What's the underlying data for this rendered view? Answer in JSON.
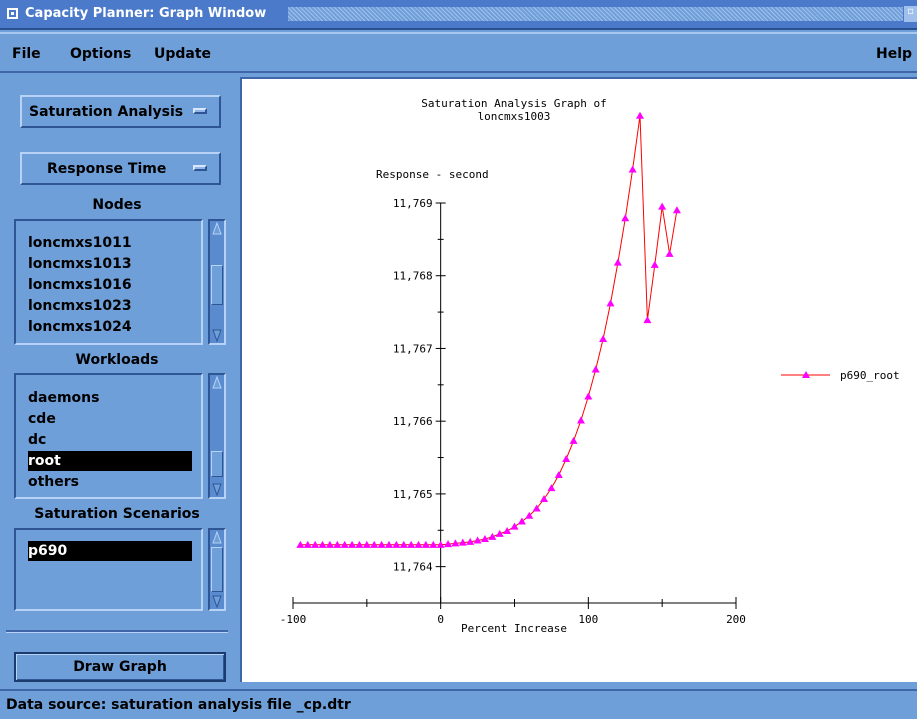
{
  "window": {
    "title": "Capacity Planner: Graph Window"
  },
  "menu": {
    "file": "File",
    "options": "Options",
    "update": "Update",
    "help": "Help"
  },
  "left_panel": {
    "analysis_option": "Saturation Analysis",
    "metric_option": "Response Time",
    "nodes_label": "Nodes",
    "nodes": [
      "loncmxs1011",
      "loncmxs1013",
      "loncmxs1016",
      "loncmxs1023",
      "loncmxs1024"
    ],
    "workloads_label": "Workloads",
    "workloads": [
      "daemons",
      "cde",
      "dc",
      "root",
      "others"
    ],
    "selected_workload": "root",
    "scenarios_label": "Saturation Scenarios",
    "scenarios": [
      "p690"
    ],
    "selected_scenario": "p690",
    "draw_button": "Draw Graph"
  },
  "status": {
    "text": "Data source: saturation analysis file _cp.dtr"
  },
  "colors": {
    "series_line": "#ff0000",
    "series_marker": "#ff00ff"
  },
  "chart_data": {
    "type": "line",
    "title": "Saturation Analysis Graph of",
    "subtitle": "loncmxs1003",
    "ylabel": "Response - second",
    "xlabel": "Percent Increase",
    "xlim": [
      -100,
      200
    ],
    "ylim": [
      11.7635,
      11.769
    ],
    "x_ticks": [
      -100,
      0,
      100,
      200
    ],
    "y_ticks": [
      11.764,
      11.765,
      11.766,
      11.767,
      11.768,
      11.769
    ],
    "x_tick_labels": [
      "-100",
      "0",
      "100",
      "200"
    ],
    "y_tick_labels": [
      "11,764",
      "11,765",
      "11,766",
      "11,767",
      "11,768",
      "11,769"
    ],
    "grid": false,
    "legend": "right",
    "series": [
      {
        "name": "p690_root",
        "marker": "triangle",
        "x": [
          -95,
          -90,
          -85,
          -80,
          -75,
          -70,
          -65,
          -60,
          -55,
          -50,
          -45,
          -40,
          -35,
          -30,
          -25,
          -20,
          -15,
          -10,
          -5,
          0,
          5,
          10,
          15,
          20,
          25,
          30,
          35,
          40,
          45,
          50,
          55,
          60,
          65,
          70,
          75,
          80,
          85,
          90,
          95,
          100,
          105,
          110,
          115,
          120,
          125,
          130,
          135,
          140,
          145,
          150,
          155,
          160
        ],
        "y": [
          11.7643,
          11.7643,
          11.7643,
          11.7643,
          11.7643,
          11.7643,
          11.7643,
          11.7643,
          11.7643,
          11.7643,
          11.7643,
          11.7643,
          11.7643,
          11.7643,
          11.7643,
          11.7643,
          11.7643,
          11.7643,
          11.7643,
          11.7643,
          11.76431,
          11.76432,
          11.76433,
          11.76434,
          11.76436,
          11.76438,
          11.76441,
          11.76445,
          11.76449,
          11.76455,
          11.76462,
          11.7647,
          11.7648,
          11.76493,
          11.76508,
          11.76526,
          11.76548,
          11.76573,
          11.76601,
          11.76634,
          11.76671,
          11.76713,
          11.76762,
          11.76818,
          11.76879,
          11.76946,
          11.7702,
          11.76739,
          11.76815,
          11.76895,
          11.7683,
          11.7689
        ]
      }
    ]
  }
}
